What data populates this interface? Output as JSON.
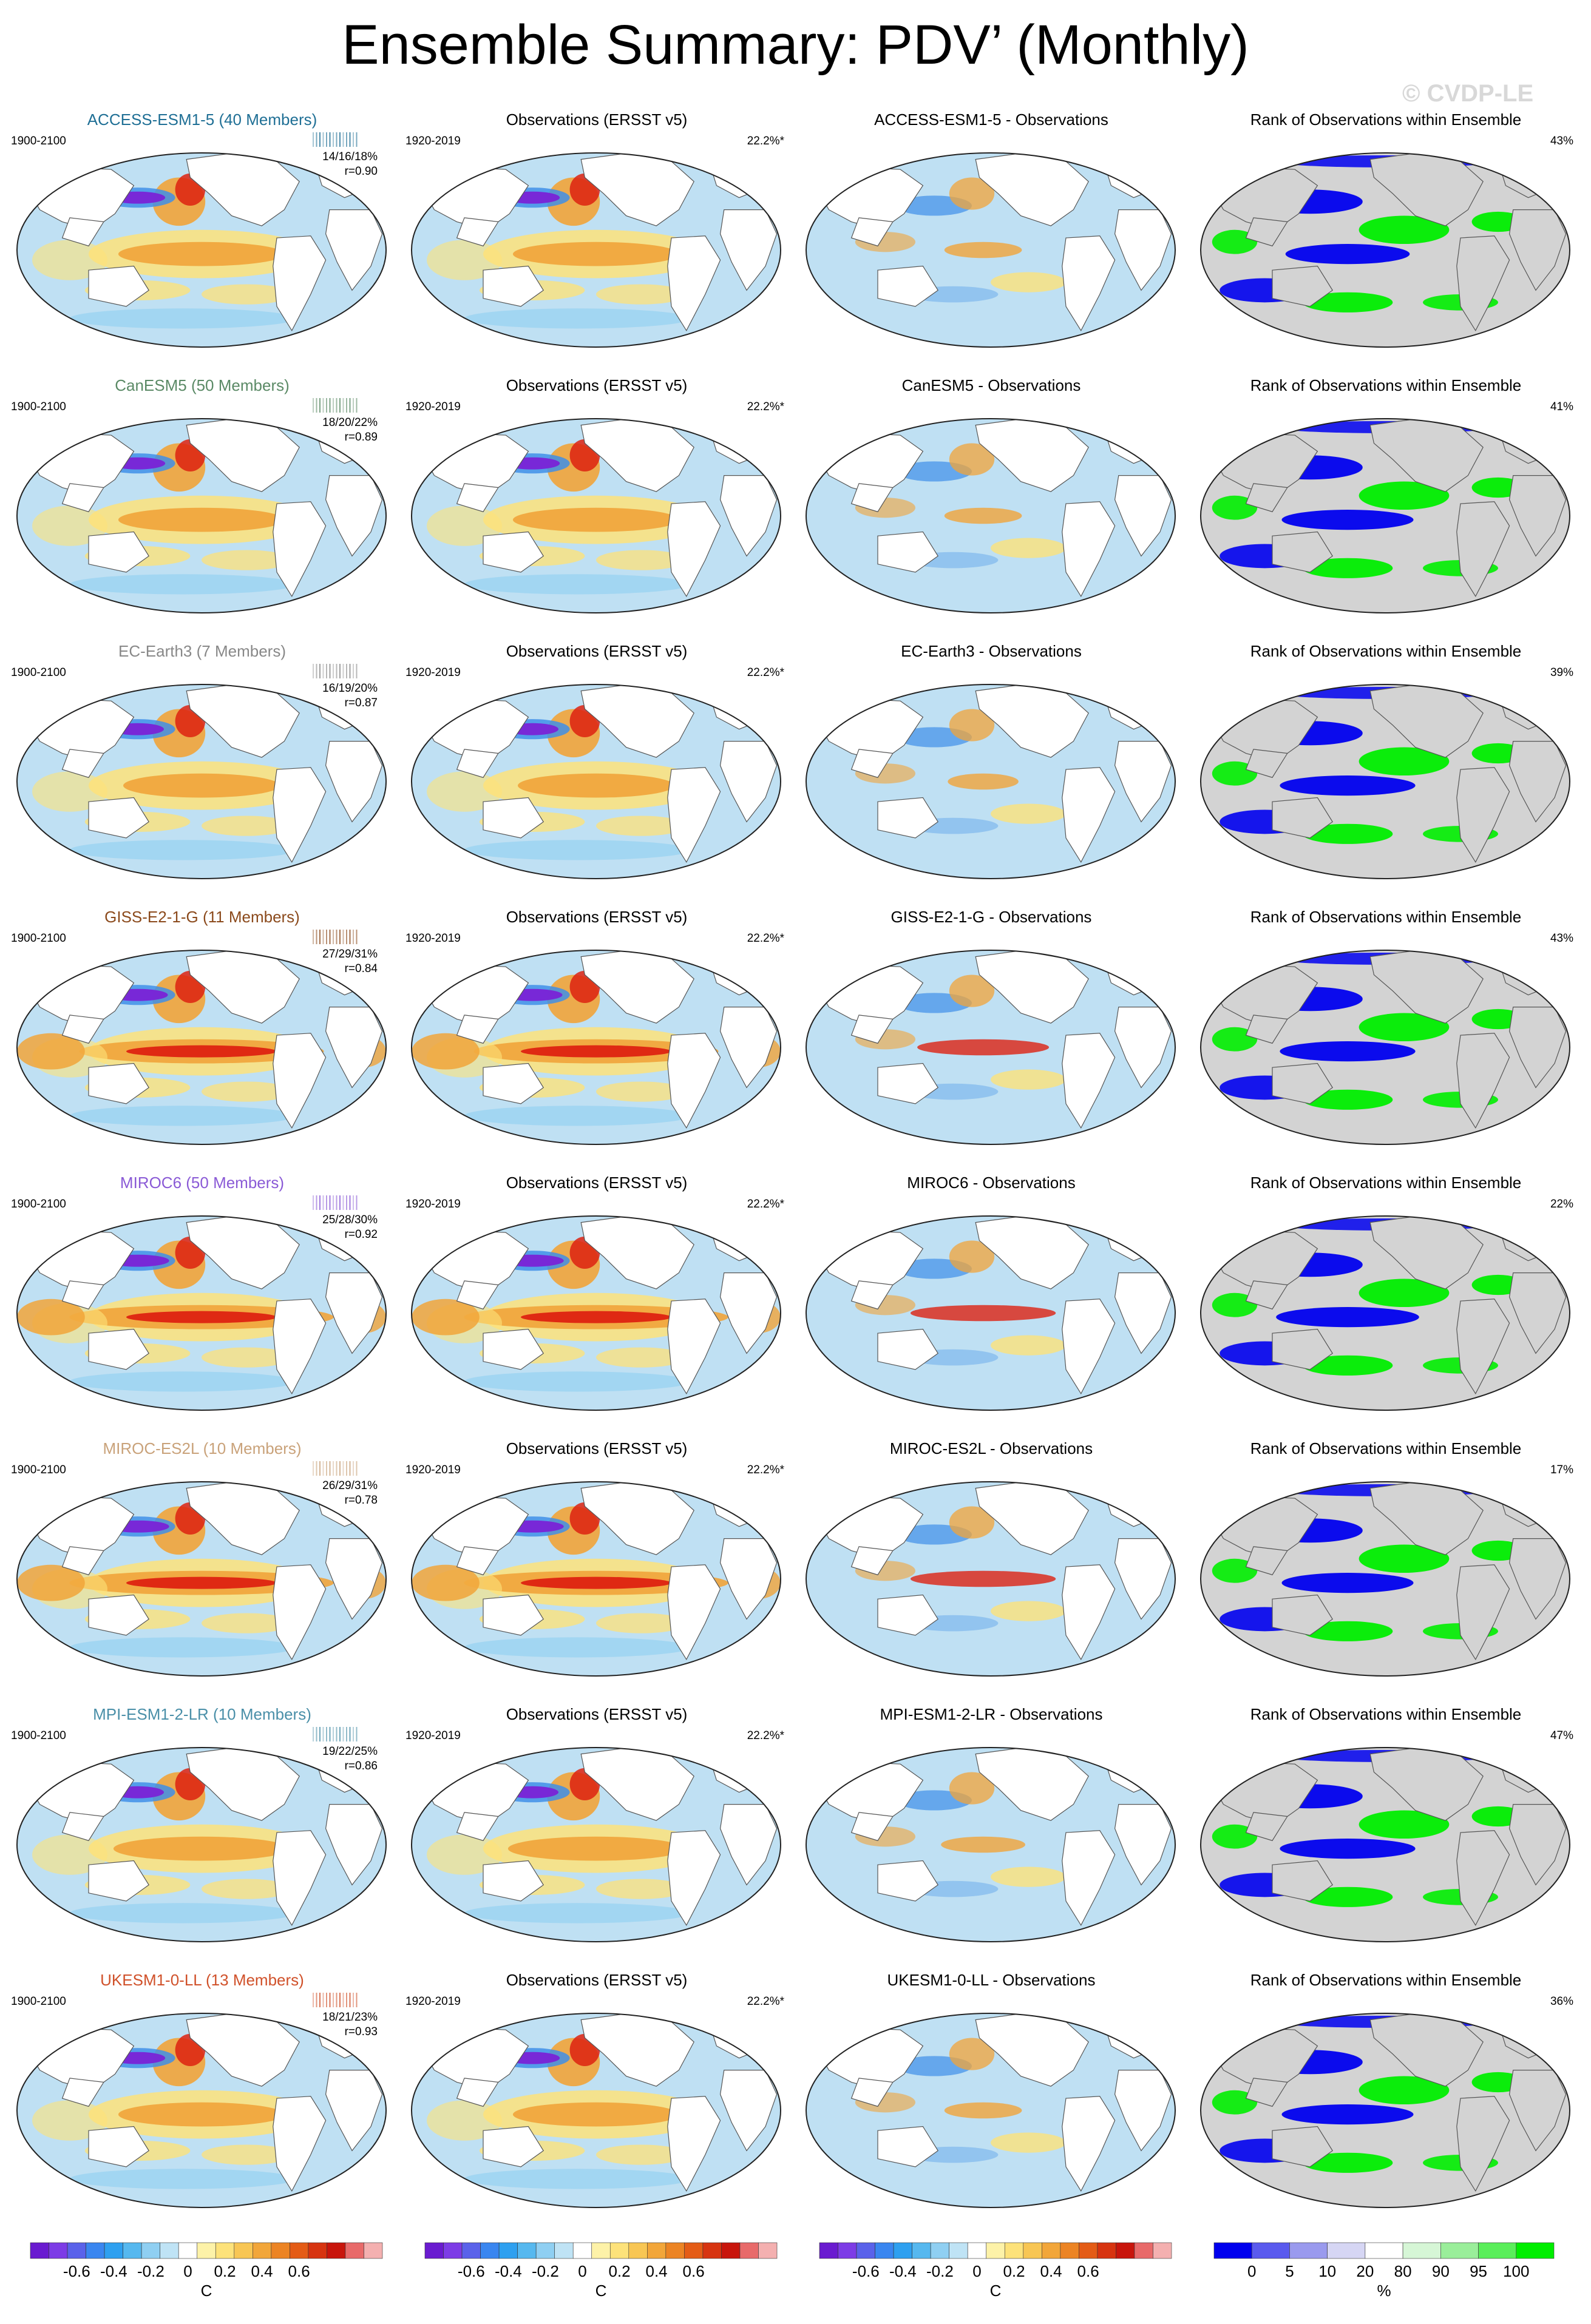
{
  "title": "Ensemble Summary: PDV’ (Monthly)",
  "watermark": "© CVDP-LE",
  "colors": {
    "ocean": "#bfe0f3",
    "land": "#ffffff",
    "rank_land": "#d3d3d3",
    "rank_low": "#0000ee",
    "rank_high": "#00ee00",
    "neg_strong": "#7a22d6",
    "neg": "#3f8fe8",
    "pos": "#f1a43a",
    "pos_strong": "#dd2211"
  },
  "chart_data": {
    "type": "heatmap",
    "obs_title": "Observations (ERSST v5)",
    "rank_title": "Rank of Observations within Ensemble",
    "model_period": "1900-2100",
    "obs_period": "1920-2019",
    "obs_pct": "22.2%*",
    "rows": [
      {
        "model": "ACCESS-ESM1-5 (40 Members)",
        "diff_title": "ACCESS-ESM1-5 - Observations",
        "color": "#1f6f95",
        "pct_range": "14/16/18%",
        "r": "r=0.90",
        "rank_pct": "43%",
        "amp": 0.55,
        "enso": 0.35,
        "rank_low": 0.25
      },
      {
        "model": "CanESM5 (50 Members)",
        "diff_title": "CanESM5 - Observations",
        "color": "#5b8a66",
        "pct_range": "18/20/22%",
        "r": "r=0.89",
        "rank_pct": "41%",
        "amp": 0.55,
        "enso": 0.35,
        "rank_low": 0.35
      },
      {
        "model": "EC-Earth3 (7 Members)",
        "diff_title": "EC-Earth3 - Observations",
        "color": "#888888",
        "pct_range": "16/19/20%",
        "r": "r=0.87",
        "rank_pct": "39%",
        "amp": 0.5,
        "enso": 0.3,
        "rank_low": 0.4
      },
      {
        "model": "GISS-E2-1-G (11 Members)",
        "diff_title": "GISS-E2-1-G - Observations",
        "color": "#8b4a1c",
        "pct_range": "27/29/31%",
        "r": "r=0.84",
        "rank_pct": "43%",
        "amp": 0.65,
        "enso": 0.75,
        "rank_low": 0.4
      },
      {
        "model": "MIROC6 (50 Members)",
        "diff_title": "MIROC6 - Observations",
        "color": "#8a5ad6",
        "pct_range": "25/28/30%",
        "r": "r=0.92",
        "rank_pct": "22%",
        "amp": 0.7,
        "enso": 0.85,
        "rank_low": 0.5
      },
      {
        "model": "MIROC-ES2L (10 Members)",
        "diff_title": "MIROC-ES2L - Observations",
        "color": "#c9a27a",
        "pct_range": "26/29/31%",
        "r": "r=0.78",
        "rank_pct": "17%",
        "amp": 0.7,
        "enso": 0.85,
        "rank_low": 0.35
      },
      {
        "model": "MPI-ESM1-2-LR (10 Members)",
        "diff_title": "MPI-ESM1-2-LR - Observations",
        "color": "#4a8fa8",
        "pct_range": "19/22/25%",
        "r": "r=0.86",
        "rank_pct": "47%",
        "amp": 0.5,
        "enso": 0.4,
        "rank_low": 0.4
      },
      {
        "model": "UKESM1-0-LL (13 Members)",
        "diff_title": "UKESM1-0-LL - Observations",
        "color": "#d0512a",
        "pct_range": "18/21/23%",
        "r": "r=0.93",
        "rank_pct": "36%",
        "amp": 0.55,
        "enso": 0.35,
        "rank_low": 0.35
      }
    ],
    "temp_colorbar": {
      "unit": "C",
      "ticks": [
        "-0.6",
        "-0.4",
        "-0.2",
        "0",
        "0.2",
        "0.4",
        "0.6"
      ],
      "colors": [
        "#6a1bd0",
        "#7d3ce6",
        "#5a62ea",
        "#3a86f0",
        "#2ea0f0",
        "#56b8ef",
        "#8fcff2",
        "#bfe3f5",
        "#ffffff",
        "#fdf2a8",
        "#fde27a",
        "#f8c654",
        "#f2a63a",
        "#ec8424",
        "#e45c16",
        "#d73410",
        "#c8150c",
        "#e86a6a",
        "#f4b0b0"
      ]
    },
    "rank_colorbar": {
      "unit": "%",
      "ticks": [
        "0",
        "5",
        "10",
        "20",
        "80",
        "90",
        "95",
        "100"
      ],
      "colors": [
        "#0000ee",
        "#5a5aee",
        "#9a9aee",
        "#d6d6f4",
        "#ffffff",
        "#d6f6d6",
        "#9aee9a",
        "#5aee5a",
        "#00ee00"
      ]
    }
  }
}
